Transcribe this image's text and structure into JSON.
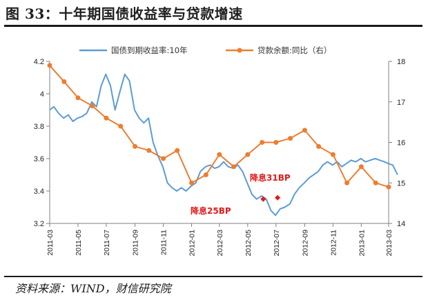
{
  "header": {
    "title": "图 33：十年期国债收益率与贷款增速"
  },
  "footer": {
    "source": "资料来源：WIND，财信研究院"
  },
  "colors": {
    "bond": "#5b9bd5",
    "loan": "#ed7d31",
    "annotation": "#e31a1c"
  },
  "chart_data": {
    "type": "line",
    "title": "",
    "legend_position": "top",
    "grid": false,
    "x_ticks": [
      "2011-03",
      "2011-05",
      "2011-07",
      "2011-09",
      "2011-11",
      "2012-01",
      "2012-03",
      "2012-05",
      "2012-07",
      "2012-09",
      "2012-11",
      "2013-01",
      "2013-03"
    ],
    "y_left": {
      "range": [
        3.2,
        4.2
      ],
      "ticks": [
        "3.2",
        "3.4",
        "3.6",
        "3.8",
        "4",
        "4.2"
      ]
    },
    "y_right": {
      "range": [
        14,
        18
      ],
      "ticks": [
        "14",
        "15",
        "16",
        "17",
        "18"
      ]
    },
    "series": [
      {
        "name": "国债到期收益率:10年",
        "axis": "left",
        "style": "line",
        "points": [
          [
            "2011-03-01",
            3.9
          ],
          [
            "2011-03-10",
            3.92
          ],
          [
            "2011-03-20",
            3.88
          ],
          [
            "2011-03-31",
            3.85
          ],
          [
            "2011-04-10",
            3.87
          ],
          [
            "2011-04-20",
            3.83
          ],
          [
            "2011-04-30",
            3.85
          ],
          [
            "2011-05-10",
            3.86
          ],
          [
            "2011-05-20",
            3.88
          ],
          [
            "2011-05-31",
            3.95
          ],
          [
            "2011-06-10",
            3.92
          ],
          [
            "2011-06-20",
            4.05
          ],
          [
            "2011-06-30",
            4.12
          ],
          [
            "2011-07-10",
            4.05
          ],
          [
            "2011-07-20",
            3.9
          ],
          [
            "2011-07-31",
            4.02
          ],
          [
            "2011-08-10",
            4.12
          ],
          [
            "2011-08-20",
            4.08
          ],
          [
            "2011-08-31",
            3.9
          ],
          [
            "2011-09-10",
            3.85
          ],
          [
            "2011-09-20",
            3.82
          ],
          [
            "2011-09-30",
            3.85
          ],
          [
            "2011-10-10",
            3.7
          ],
          [
            "2011-10-20",
            3.62
          ],
          [
            "2011-10-31",
            3.55
          ],
          [
            "2011-11-10",
            3.45
          ],
          [
            "2011-11-20",
            3.42
          ],
          [
            "2011-11-30",
            3.4
          ],
          [
            "2011-12-10",
            3.42
          ],
          [
            "2011-12-20",
            3.4
          ],
          [
            "2011-12-31",
            3.43
          ],
          [
            "2012-01-10",
            3.45
          ],
          [
            "2012-01-20",
            3.52
          ],
          [
            "2012-01-31",
            3.55
          ],
          [
            "2012-02-10",
            3.56
          ],
          [
            "2012-02-20",
            3.54
          ],
          [
            "2012-02-29",
            3.55
          ],
          [
            "2012-03-10",
            3.58
          ],
          [
            "2012-03-20",
            3.55
          ],
          [
            "2012-03-31",
            3.54
          ],
          [
            "2012-04-10",
            3.56
          ],
          [
            "2012-04-20",
            3.52
          ],
          [
            "2012-04-30",
            3.45
          ],
          [
            "2012-05-10",
            3.38
          ],
          [
            "2012-05-20",
            3.35
          ],
          [
            "2012-05-31",
            3.37
          ],
          [
            "2012-06-10",
            3.35
          ],
          [
            "2012-06-20",
            3.28
          ],
          [
            "2012-06-30",
            3.25
          ],
          [
            "2012-07-10",
            3.29
          ],
          [
            "2012-07-20",
            3.3
          ],
          [
            "2012-07-31",
            3.32
          ],
          [
            "2012-08-10",
            3.38
          ],
          [
            "2012-08-20",
            3.42
          ],
          [
            "2012-08-31",
            3.45
          ],
          [
            "2012-09-10",
            3.48
          ],
          [
            "2012-09-20",
            3.5
          ],
          [
            "2012-09-30",
            3.52
          ],
          [
            "2012-10-10",
            3.56
          ],
          [
            "2012-10-20",
            3.58
          ],
          [
            "2012-10-31",
            3.56
          ],
          [
            "2012-11-10",
            3.58
          ],
          [
            "2012-11-20",
            3.55
          ],
          [
            "2012-11-30",
            3.57
          ],
          [
            "2012-12-10",
            3.59
          ],
          [
            "2012-12-20",
            3.58
          ],
          [
            "2012-12-31",
            3.6
          ],
          [
            "2013-01-10",
            3.58
          ],
          [
            "2013-01-20",
            3.59
          ],
          [
            "2013-01-31",
            3.6
          ],
          [
            "2013-02-10",
            3.59
          ],
          [
            "2013-02-20",
            3.58
          ],
          [
            "2013-02-28",
            3.57
          ],
          [
            "2013-03-10",
            3.56
          ],
          [
            "2013-03-20",
            3.5
          ]
        ]
      },
      {
        "name": "贷款余额:同比（右）",
        "axis": "right",
        "style": "line-markers",
        "points": [
          [
            "2011-03",
            17.9
          ],
          [
            "2011-04",
            17.5
          ],
          [
            "2011-05",
            17.1
          ],
          [
            "2011-06",
            16.9
          ],
          [
            "2011-07",
            16.6
          ],
          [
            "2011-08",
            16.4
          ],
          [
            "2011-09",
            15.9
          ],
          [
            "2011-10",
            15.8
          ],
          [
            "2011-11",
            15.6
          ],
          [
            "2011-12",
            15.8
          ],
          [
            "2012-01",
            15.0
          ],
          [
            "2012-02",
            15.2
          ],
          [
            "2012-03",
            15.7
          ],
          [
            "2012-04",
            15.4
          ],
          [
            "2012-05",
            15.7
          ],
          [
            "2012-06",
            16.0
          ],
          [
            "2012-07",
            16.0
          ],
          [
            "2012-08",
            16.1
          ],
          [
            "2012-09",
            16.3
          ],
          [
            "2012-10",
            15.9
          ],
          [
            "2012-11",
            15.7
          ],
          [
            "2012-12",
            15.0
          ],
          [
            "2013-01",
            15.4
          ],
          [
            "2013-02",
            15.0
          ],
          [
            "2013-03",
            14.9
          ]
        ]
      }
    ],
    "annotations": [
      {
        "label": "降息31BP",
        "date": "2012-06-08",
        "value": 3.35
      },
      {
        "label": "降息25BP",
        "date": "2012-07-06",
        "value": 3.38
      }
    ]
  }
}
